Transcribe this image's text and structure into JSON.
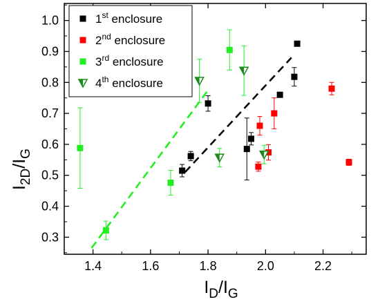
{
  "chart_data": {
    "type": "scatter",
    "xlabel": {
      "main": "I",
      "sub": "D",
      "tail": "/I",
      "sub2": "G"
    },
    "ylabel": {
      "main": "I",
      "sub": "2D",
      "tail": "/I",
      "sub2": "G"
    },
    "xlim": [
      1.3,
      2.35
    ],
    "ylim": [
      0.245,
      1.055
    ],
    "xticks": [
      1.4,
      1.6,
      1.8,
      2.0,
      2.2
    ],
    "xtick_labels": [
      "1.4",
      "1.6",
      "1.8",
      "2.0",
      "2.2"
    ],
    "yticks": [
      0.3,
      0.4,
      0.5,
      0.6,
      0.7,
      0.8,
      0.9,
      1.0
    ],
    "ytick_labels": [
      "0.3",
      "0.4",
      "0.5",
      "0.6",
      "0.7",
      "0.8",
      "0.9",
      "1.0"
    ],
    "grid": false,
    "legend_position": "top-left",
    "series": [
      {
        "name_base": "1",
        "name_sup": "st",
        "name_tail": " enclosure",
        "color": "#000000",
        "marker": "square",
        "points": [
          {
            "x": 1.71,
            "y": 0.515,
            "err": 0.02
          },
          {
            "x": 1.74,
            "y": 0.562,
            "err": 0.015
          },
          {
            "x": 1.8,
            "y": 0.732,
            "err": 0.025
          },
          {
            "x": 1.935,
            "y": 0.585,
            "err": 0.1
          },
          {
            "x": 1.95,
            "y": 0.618,
            "err": 0.02
          },
          {
            "x": 2.05,
            "y": 0.76,
            "err": 0.0
          },
          {
            "x": 2.1,
            "y": 0.818,
            "err": 0.03
          },
          {
            "x": 2.11,
            "y": 0.925,
            "err": 0.0
          }
        ],
        "fit": {
          "x": [
            1.72,
            2.09
          ],
          "y": [
            0.51,
            0.88
          ]
        }
      },
      {
        "name_base": "2",
        "name_sup": "nd",
        "name_tail": " enclosure",
        "color": "#ff0000",
        "marker": "square",
        "points": [
          {
            "x": 1.975,
            "y": 0.528,
            "err": 0.015
          },
          {
            "x": 1.98,
            "y": 0.66,
            "err": 0.03
          },
          {
            "x": 2.01,
            "y": 0.574,
            "err": 0.025
          },
          {
            "x": 2.03,
            "y": 0.7,
            "err": 0.05
          },
          {
            "x": 2.23,
            "y": 0.78,
            "err": 0.02
          },
          {
            "x": 2.29,
            "y": 0.542,
            "err": 0.01
          }
        ]
      },
      {
        "name_base": "3",
        "name_sup": "rd",
        "name_tail": " enclosure",
        "color": "#22ee22",
        "marker": "square",
        "points": [
          {
            "x": 1.355,
            "y": 0.588,
            "err": 0.13
          },
          {
            "x": 1.445,
            "y": 0.322,
            "err": 0.03
          },
          {
            "x": 1.67,
            "y": 0.476,
            "err": 0.04
          },
          {
            "x": 1.875,
            "y": 0.905,
            "err": 0.065
          }
        ],
        "fit": {
          "x": [
            1.395,
            1.8
          ],
          "y": [
            0.265,
            0.775
          ]
        }
      },
      {
        "name_base": "4",
        "name_sup": "th",
        "name_tail": " enclosure",
        "color": "#1a8a1a",
        "marker": "triangle-down",
        "points": [
          {
            "x": 1.77,
            "y": 0.805,
            "err": 0.07
          },
          {
            "x": 1.84,
            "y": 0.557,
            "err": 0.03
          },
          {
            "x": 1.925,
            "y": 0.838,
            "err": 0.08
          },
          {
            "x": 1.995,
            "y": 0.567,
            "err": 0.03
          }
        ]
      }
    ]
  }
}
